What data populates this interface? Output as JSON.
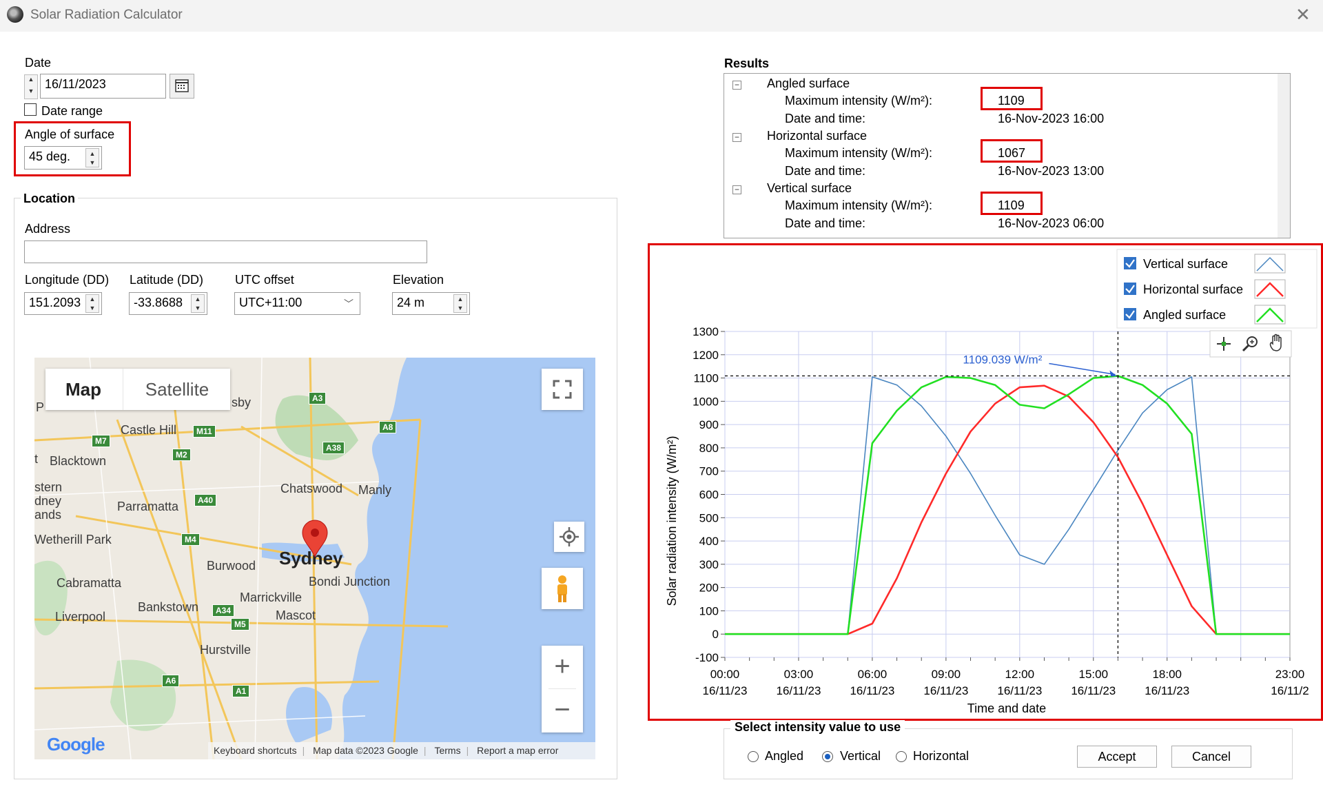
{
  "window": {
    "title": "Solar Radiation Calculator",
    "close": "✕"
  },
  "date": {
    "label": "Date",
    "value": "16/11/2023",
    "range_label": "Date range",
    "range_checked": false
  },
  "angle": {
    "label": "Angle of surface",
    "value": "45 deg."
  },
  "location": {
    "label": "Location",
    "address_label": "Address",
    "address_value": "",
    "longitude_label": "Longitude (DD)",
    "longitude_value": "151.2093",
    "latitude_label": "Latitude (DD)",
    "latitude_value": "-33.8688",
    "utc_label": "UTC offset",
    "utc_value": "UTC+11:00",
    "elevation_label": "Elevation",
    "elevation_value": "24 m"
  },
  "map": {
    "tab_map": "Map",
    "tab_satellite": "Satellite",
    "logo": "Google",
    "places": [
      "Castle Hill",
      "Blacktown",
      "Parramatta",
      "Chatswood",
      "Manly",
      "Sydney",
      "Bondi Junction",
      "Burwood",
      "Marrickville",
      "Cabramatta",
      "Bankstown",
      "Mascot",
      "Liverpool",
      "Hurstville",
      "Wetherill Park",
      "stern",
      "dney",
      "ands",
      "sby",
      "P",
      "t"
    ],
    "roads": [
      "M7",
      "M11",
      "M2",
      "A3",
      "A8",
      "A38",
      "A40",
      "M4",
      "A34",
      "M5",
      "A6",
      "A1"
    ],
    "footer": [
      "Keyboard shortcuts",
      "Map data ©2023 Google",
      "Terms",
      "Report a map error"
    ],
    "zoom_in": "+",
    "zoom_out": "−"
  },
  "results": {
    "label": "Results",
    "sections": [
      {
        "name": "Angled surface",
        "max_label": "Maximum intensity (W/m²):",
        "max_value": "1109",
        "dt_label": "Date and time:",
        "dt_value": "16-Nov-2023 16:00"
      },
      {
        "name": "Horizontal surface",
        "max_label": "Maximum intensity (W/m²):",
        "max_value": "1067",
        "dt_label": "Date and time:",
        "dt_value": "16-Nov-2023 13:00"
      },
      {
        "name": "Vertical surface",
        "max_label": "Maximum intensity (W/m²):",
        "max_value": "1109",
        "dt_label": "Date and time:",
        "dt_value": "16-Nov-2023 06:00"
      }
    ]
  },
  "chart_data": {
    "type": "line",
    "title": "",
    "xlabel": "Time and date",
    "ylabel": "Solar radiation intensity (W/m²)",
    "ylim": [
      -100,
      1300
    ],
    "yticks": [
      -100,
      0,
      100,
      200,
      300,
      400,
      500,
      600,
      700,
      800,
      900,
      1000,
      1100,
      1200,
      1300
    ],
    "xlim": [
      0,
      23
    ],
    "xticks": [
      {
        "x": 0,
        "time": "00:00",
        "date": "16/11/23"
      },
      {
        "x": 3,
        "time": "03:00",
        "date": "16/11/23"
      },
      {
        "x": 6,
        "time": "06:00",
        "date": "16/11/23"
      },
      {
        "x": 9,
        "time": "09:00",
        "date": "16/11/23"
      },
      {
        "x": 12,
        "time": "12:00",
        "date": "16/11/23"
      },
      {
        "x": 15,
        "time": "15:00",
        "date": "16/11/23"
      },
      {
        "x": 18,
        "time": "18:00",
        "date": "16/11/23"
      },
      {
        "x": 23,
        "time": "23:00",
        "date": "16/11/2"
      }
    ],
    "grid": true,
    "legend_position": "top-right",
    "annotation": {
      "text": "1109.039 W/m²",
      "x": 16,
      "y": 1109
    },
    "series": [
      {
        "name": "Vertical surface",
        "color": "#4a86c0",
        "points": [
          [
            0,
            0
          ],
          [
            5,
            0
          ],
          [
            6,
            1105
          ],
          [
            7,
            1070
          ],
          [
            8,
            980
          ],
          [
            9,
            850
          ],
          [
            10,
            690
          ],
          [
            11,
            510
          ],
          [
            12,
            340
          ],
          [
            13,
            300
          ],
          [
            14,
            450
          ],
          [
            15,
            620
          ],
          [
            16,
            790
          ],
          [
            17,
            950
          ],
          [
            18,
            1050
          ],
          [
            19,
            1105
          ],
          [
            20,
            0
          ],
          [
            23,
            0
          ]
        ]
      },
      {
        "name": "Horizontal surface",
        "color": "#ff2a2a",
        "points": [
          [
            0,
            0
          ],
          [
            5,
            0
          ],
          [
            6,
            45
          ],
          [
            7,
            240
          ],
          [
            8,
            480
          ],
          [
            9,
            690
          ],
          [
            10,
            870
          ],
          [
            11,
            990
          ],
          [
            12,
            1060
          ],
          [
            13,
            1067
          ],
          [
            14,
            1020
          ],
          [
            15,
            910
          ],
          [
            16,
            760
          ],
          [
            17,
            560
          ],
          [
            18,
            340
          ],
          [
            19,
            120
          ],
          [
            20,
            0
          ],
          [
            23,
            0
          ]
        ]
      },
      {
        "name": "Angled surface",
        "color": "#22e022",
        "points": [
          [
            0,
            0
          ],
          [
            5,
            0
          ],
          [
            6,
            820
          ],
          [
            7,
            960
          ],
          [
            8,
            1060
          ],
          [
            9,
            1105
          ],
          [
            10,
            1100
          ],
          [
            11,
            1070
          ],
          [
            12,
            985
          ],
          [
            13,
            970
          ],
          [
            14,
            1030
          ],
          [
            15,
            1100
          ],
          [
            16,
            1109
          ],
          [
            17,
            1070
          ],
          [
            18,
            990
          ],
          [
            19,
            860
          ],
          [
            20,
            0
          ],
          [
            23,
            0
          ]
        ]
      }
    ]
  },
  "select": {
    "label": "Select intensity value to use",
    "options": [
      "Angled",
      "Vertical",
      "Horizontal"
    ],
    "selected": "Vertical",
    "accept": "Accept",
    "cancel": "Cancel"
  }
}
